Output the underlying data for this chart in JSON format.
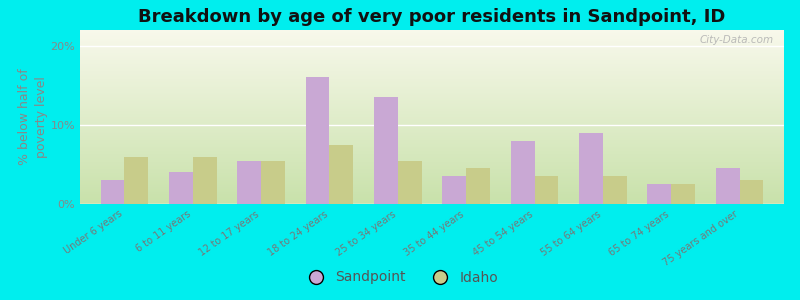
{
  "title": "Breakdown by age of very poor residents in Sandpoint, ID",
  "ylabel": "% below half of\npoverty level",
  "categories": [
    "Under 6 years",
    "6 to 11 years",
    "12 to 17 years",
    "18 to 24 years",
    "25 to 34 years",
    "35 to 44 years",
    "45 to 54 years",
    "55 to 64 years",
    "65 to 74 years",
    "75 years and over"
  ],
  "sandpoint_values": [
    3.0,
    4.0,
    5.5,
    16.0,
    13.5,
    3.5,
    8.0,
    9.0,
    2.5,
    4.5
  ],
  "idaho_values": [
    6.0,
    6.0,
    5.5,
    7.5,
    5.5,
    4.5,
    3.5,
    3.5,
    2.5,
    3.0
  ],
  "sandpoint_color": "#c9a8d4",
  "idaho_color": "#c8cc8a",
  "outer_bg": "#00eeee",
  "ylim": [
    0,
    22
  ],
  "yticks": [
    0,
    10,
    20
  ],
  "ytick_labels": [
    "0%",
    "10%",
    "20%"
  ],
  "bar_width": 0.35,
  "title_fontsize": 13,
  "axis_fontsize": 9,
  "tick_fontsize": 8,
  "legend_fontsize": 10,
  "watermark": "City-Data.com"
}
